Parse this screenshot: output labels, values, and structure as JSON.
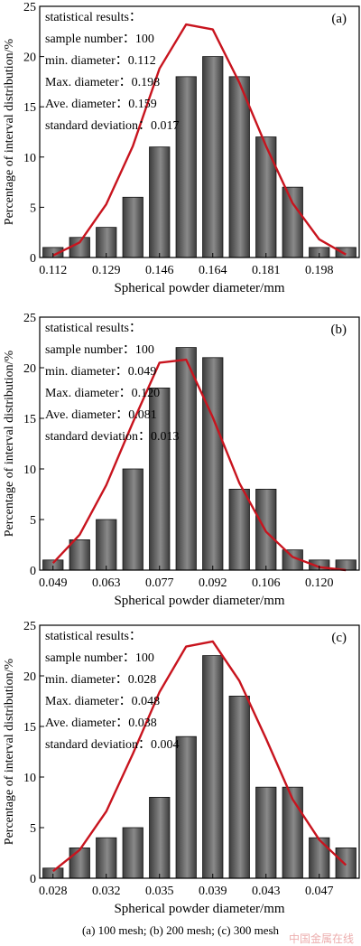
{
  "caption": "(a) 100   mesh; (b) 200 mesh; (c) 300 mesh",
  "watermark": "中国金属在线",
  "colors": {
    "bar_fill": "#3c3c3c",
    "bar_highlight": "#8a8a8a",
    "curve": "#c8141e",
    "axis": "#000000"
  },
  "chart_data": [
    {
      "type": "bar",
      "panel_label": "(a)",
      "xlabel": "Spherical powder diameter/mm",
      "ylabel": "Percentage of interval distribution/%",
      "ylim": [
        0,
        25
      ],
      "yticks": [
        0,
        5,
        10,
        15,
        20,
        25
      ],
      "xtick_labels": [
        "0.112",
        "0.129",
        "0.146",
        "0.164",
        "0.181",
        "0.198"
      ],
      "values": [
        1,
        2,
        3,
        6,
        11,
        18,
        20,
        18,
        12,
        7,
        1,
        1
      ],
      "fit_curve": [
        0.2,
        1.5,
        5.3,
        11.1,
        18.8,
        23.2,
        22.7,
        17.4,
        11.1,
        5.4,
        1.8,
        0.3
      ],
      "stats": [
        "statistical results：",
        "sample number：100",
        "min. diameter：0.112",
        "Max. diameter：0.198",
        "Ave. diameter：0.159",
        "standard deviation：0.017"
      ]
    },
    {
      "type": "bar",
      "panel_label": "(b)",
      "xlabel": "Spherical powder diameter/mm",
      "ylabel": "Percentage of interval distribution/%",
      "ylim": [
        0,
        25
      ],
      "yticks": [
        0,
        5,
        10,
        15,
        20,
        25
      ],
      "xtick_labels": [
        "0.049",
        "0.063",
        "0.077",
        "0.092",
        "0.106",
        "0.120"
      ],
      "values": [
        1,
        3,
        5,
        10,
        18,
        22,
        21,
        8,
        8,
        2,
        1,
        1
      ],
      "fit_curve": [
        0.7,
        3.5,
        8.4,
        14.6,
        20.5,
        20.8,
        15.1,
        8.6,
        3.8,
        1.3,
        0.3,
        0.0
      ],
      "stats": [
        "statistical results：",
        "sample number：100",
        "min. diameter：0.049",
        "Max. diameter：0.120",
        "Ave. diameter：0.081",
        "standard deviation：0.013"
      ]
    },
    {
      "type": "bar",
      "panel_label": "(c)",
      "xlabel": "Spherical powder diameter/mm",
      "ylabel": "Percentage of interval distribution/%",
      "ylim": [
        0,
        25
      ],
      "yticks": [
        0,
        5,
        10,
        15,
        20,
        25
      ],
      "xtick_labels": [
        "0.028",
        "0.032",
        "0.035",
        "0.039",
        "0.043",
        "0.047"
      ],
      "values": [
        1,
        3,
        4,
        5,
        8,
        14,
        22,
        18,
        9,
        9,
        4,
        3
      ],
      "fit_curve": [
        0.7,
        2.8,
        6.6,
        12.3,
        18.4,
        22.9,
        23.4,
        19.5,
        13.8,
        7.8,
        3.8,
        1.3
      ],
      "stats": [
        "statistical results：",
        "sample number：100",
        "min. diameter：0.028",
        "Max. diameter：0.048",
        "Ave. diameter：0.038",
        "standard deviation：0.004"
      ]
    }
  ]
}
